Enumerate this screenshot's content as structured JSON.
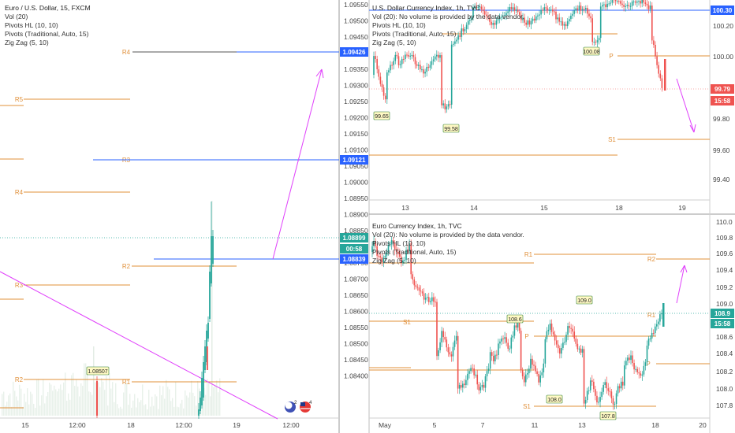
{
  "panels": [
    {
      "id": "eurusd",
      "title": "Euro / U.S. Dollar, 15, FXCM",
      "indicators": [
        "Vol (20)",
        "Pivots HL (10, 10)",
        "Pivots (Traditional, Auto, 15)",
        "Zig Zag (5, 10)"
      ],
      "yticks": [
        "1.09550",
        "1.09500",
        "1.09450",
        "1.09400",
        "1.09350",
        "1.09300",
        "1.09250",
        "1.09200",
        "1.09150",
        "1.09100",
        "1.09050",
        "1.09000",
        "1.08950",
        "1.08900",
        "1.08850",
        "1.08800",
        "1.08750",
        "1.08700",
        "1.08650",
        "1.08600",
        "1.08550",
        "1.08500",
        "1.08450",
        "1.08400"
      ],
      "xticks": [
        "15",
        "12:00",
        "18",
        "12:00",
        "19",
        "12:00"
      ],
      "price_badges": [
        {
          "text": "1.09426",
          "color": "#2962ff"
        },
        {
          "text": "1.09121",
          "color": "#2962ff"
        },
        {
          "text": "1.08899",
          "color": "#26a69a"
        },
        {
          "text": "00:58",
          "color": "#26a69a"
        },
        {
          "text": "1.08839",
          "color": "#2962ff"
        }
      ],
      "pivot_labels": [
        "R4",
        "R5",
        "R3",
        "R4",
        "R2",
        "R3",
        "R2",
        "R1"
      ],
      "pivot_value_label": "1.08507"
    },
    {
      "id": "dxy",
      "title": "U.S. Dollar Currency Index, 1h, TVC",
      "indicators": [
        "Vol (20): No volume is provided by the data vendor.",
        "Pivots HL (10, 10)",
        "Pivots (Traditional, Auto, 15)",
        "Zig Zag (5, 10)"
      ],
      "yticks": [
        "100.20",
        "100.00",
        "99.80",
        "99.60",
        "99.40",
        "99.20"
      ],
      "xticks": [
        "13",
        "14",
        "15",
        "18",
        "19"
      ],
      "price_badges": [
        {
          "text": "100.30",
          "color": "#2962ff"
        },
        {
          "text": "99.79",
          "color": "#ef5350"
        },
        {
          "text": "15:58",
          "color": "#ef5350"
        }
      ],
      "pivot_labels": [
        "P",
        "S1"
      ],
      "pivot_value_labels": [
        "99.65",
        "99.58",
        "100.08"
      ]
    },
    {
      "id": "eurx",
      "title": "Euro Currency Index, 1h, TVC",
      "indicators": [
        "Vol (20): No volume is provided by the data vendor.",
        "Pivots HL (10, 10)",
        "Pivots (Traditional, Auto, 15)",
        "Zig Zag (5, 10)"
      ],
      "yticks": [
        "110.0",
        "109.8",
        "109.6",
        "109.4",
        "109.2",
        "109.0",
        "108.6",
        "108.4",
        "108.2",
        "108.0",
        "107.8"
      ],
      "xticks": [
        "May",
        "5",
        "7",
        "11",
        "13",
        "18",
        "20"
      ],
      "price_badges": [
        {
          "text": "108.9",
          "color": "#26a69a"
        },
        {
          "text": "15:58",
          "color": "#26a69a"
        }
      ],
      "pivot_labels": [
        "R1",
        "R2",
        "S1",
        "P",
        "R1",
        "P",
        "S1"
      ],
      "pivot_value_labels": [
        "108.6",
        "109.0",
        "108.0",
        "107.8"
      ]
    }
  ],
  "colors": {
    "pivot": "#e0903a",
    "up": "#26a69a",
    "down": "#ef5350",
    "arrow": "#e040fb",
    "line": "#2962ff"
  },
  "icons": [
    "earnings-icon",
    "us-flag-icon"
  ],
  "icon_counts": [
    "2",
    "4"
  ]
}
